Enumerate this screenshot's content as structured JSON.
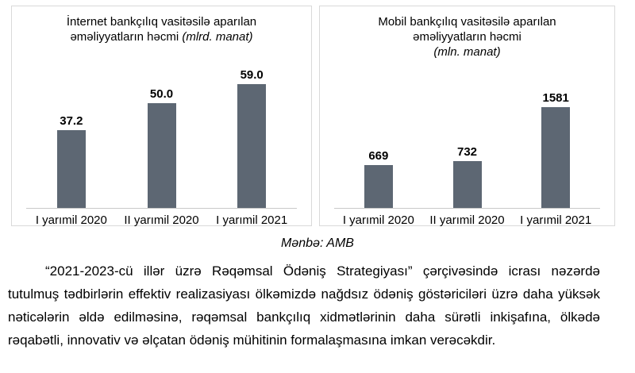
{
  "colors": {
    "bar": "#5d6773",
    "box_border": "#d9d9d9",
    "axis_line": "#c9c9c9",
    "text": "#000000"
  },
  "chart_data": [
    {
      "type": "bar",
      "title": "İnternet bankçılıq vasitəsilə aparılan əməliyyatların həcmi",
      "unit": "(mlrd. manat)",
      "categories": [
        "I yarımil 2020",
        "II yarımil 2020",
        "I yarımil 2021"
      ],
      "values": [
        37.2,
        50.0,
        59.0
      ],
      "value_labels": [
        "37.2",
        "50.0",
        "59.0"
      ],
      "ylim": [
        0,
        70
      ],
      "grid": false,
      "legend": "none"
    },
    {
      "type": "bar",
      "title": "Mobil bankçılıq vasitəsilə aparılan əməliyyatların həcmi",
      "unit": "(mln. manat)",
      "categories": [
        "I yarımil 2020",
        "II yarımil 2020",
        "I yarımil 2021"
      ],
      "values": [
        669,
        732,
        1581
      ],
      "value_labels": [
        "669",
        "732",
        "1581"
      ],
      "ylim": [
        0,
        2300
      ],
      "grid": false,
      "legend": "none"
    }
  ],
  "page": {
    "source_label": "Mənbə: AMB",
    "paragraph": "“2021-2023-cü illər üzrə Rəqəmsal Ödəniş Strategiyası” çərçivəsində icrası nəzərdə tutulmuş tədbirlərin effektiv realizasiyası ölkəmizdə nağdsız ödəniş göstəriciləri üzrə daha yüksək nəticələrin əldə edilməsinə, rəqəmsal bankçılıq xidmətlərinin daha sürətli inkişafına, ölkədə rəqabətli, innovativ və əlçatan ödəniş mühitinin formalaşmasına imkan verəcəkdir."
  }
}
